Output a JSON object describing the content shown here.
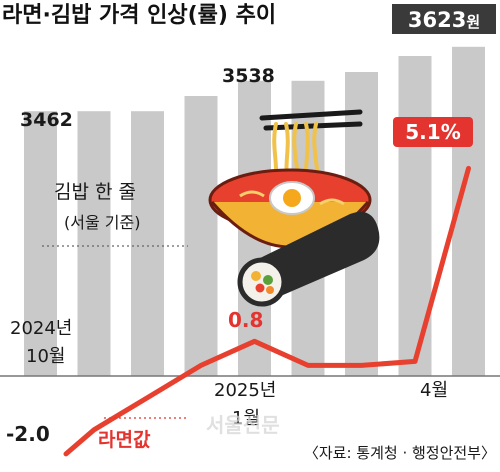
{
  "title": "라면·김밥 가격 인상(률) 추이",
  "source": "〈자료: 통계청 · 행정안전부〉",
  "watermark": "서울신문",
  "colors": {
    "bar": "#c9c9c9",
    "line": "#e8402f",
    "label_red": "#e3342f",
    "highlight_box_bg": "#3a3a3a",
    "pct_box_bg": "#e3342f",
    "text_dark": "#222222",
    "baseline": "#777777"
  },
  "chart_data": [
    {
      "type": "bar",
      "series_label": "김밥 한 줄",
      "series_note": "(서울 기준)",
      "unit": "원",
      "categories": [
        "2024년 10월",
        "",
        "",
        "",
        "2025년 1월",
        "",
        "",
        "",
        "4월"
      ],
      "values": [
        3462,
        3462,
        3462,
        3500,
        3538,
        3538,
        3560,
        3600,
        3623
      ],
      "labels": [
        {
          "index": 0,
          "text": "3462"
        },
        {
          "index": 4,
          "text": "3538"
        },
        {
          "index": 8,
          "text": "3623",
          "unit": "원",
          "highlight": true
        }
      ],
      "ylim": [
        2800,
        3660
      ]
    },
    {
      "type": "line",
      "series_label": "라면값",
      "unit": "%",
      "x": [
        "2024년 10월",
        "",
        "",
        "",
        "2025년 1월",
        "",
        "",
        "",
        "4월"
      ],
      "values": [
        -2.0,
        -1.4,
        -0.6,
        0.2,
        0.8,
        0.2,
        0.2,
        0.3,
        5.1
      ],
      "labels": [
        {
          "index": 0,
          "text": "-2.0"
        },
        {
          "index": 4,
          "text": "0.8"
        },
        {
          "index": 8,
          "text": "5.1%",
          "highlight": true
        }
      ],
      "ylim": [
        -2.4,
        6.8
      ]
    }
  ],
  "x_axis_labels": [
    {
      "index": 0,
      "line1": "2024년",
      "line2": "10월"
    },
    {
      "index": 4,
      "line1": "2025년",
      "line2": "1월"
    },
    {
      "index": 8,
      "line1": "4월",
      "line2": ""
    }
  ]
}
